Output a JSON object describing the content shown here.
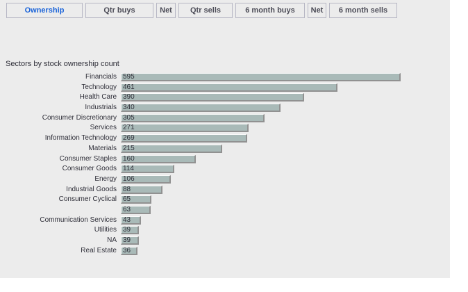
{
  "colors": {
    "panel_bg": "#ececec",
    "tab_border": "#b7b7c4",
    "tab_text": "#4d4d58",
    "active_tab_text": "#1a63d9",
    "text": "#2e2e38",
    "bar_fill": "#a9bab8",
    "bar_highlight": "#fafafa",
    "bar_shadow": "#919191"
  },
  "tabs": [
    {
      "label": "Ownership",
      "active": true
    },
    {
      "label": "Qtr buys",
      "active": false
    },
    {
      "label": "Net",
      "active": false
    },
    {
      "label": "Qtr sells",
      "active": false
    },
    {
      "label": "6 month buys",
      "active": false
    },
    {
      "label": "Net",
      "active": false
    },
    {
      "label": "6 month sells",
      "active": false
    }
  ],
  "chart_data": {
    "type": "bar",
    "orientation": "horizontal",
    "title": "Sectors by stock ownership count",
    "categories": [
      "Financials",
      "Technology",
      "Health Care",
      "Industrials",
      "Consumer Discretionary",
      "Services",
      "Information Technology",
      "Materials",
      "Consumer Staples",
      "Consumer Goods",
      "Energy",
      "Industrial Goods",
      "Consumer Cyclical",
      "",
      "Communication Services",
      "Utilities",
      "NA",
      "Real Estate"
    ],
    "values": [
      595,
      461,
      390,
      340,
      305,
      271,
      269,
      215,
      160,
      114,
      106,
      88,
      65,
      63,
      43,
      39,
      39,
      36
    ],
    "xlim": [
      0,
      595
    ],
    "value_labels_shown": true,
    "grid": false,
    "legend": false
  }
}
